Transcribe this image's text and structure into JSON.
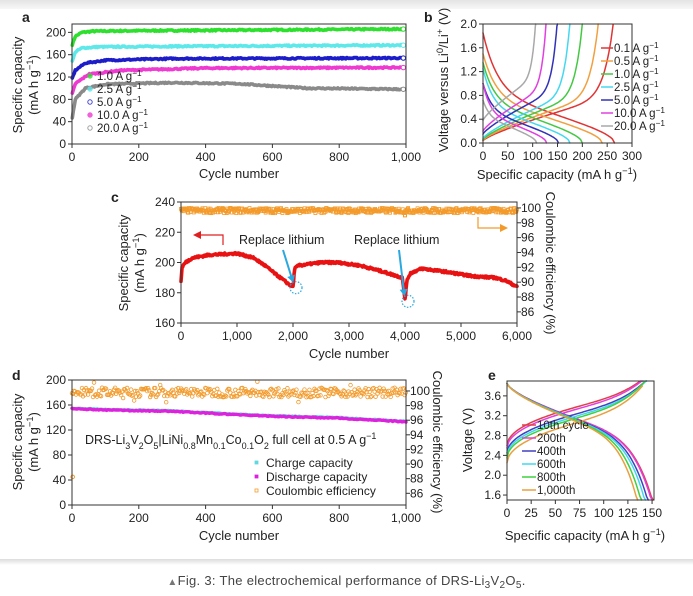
{
  "caption": {
    "marker": "▲",
    "segments": [
      {
        "t": "Fig. 3: The electrochemical performance of DRS-Li",
        "s": ""
      },
      {
        "t": "3",
        "s": "sub"
      },
      {
        "t": "V",
        "s": ""
      },
      {
        "t": "2",
        "s": "sub"
      },
      {
        "t": "O",
        "s": ""
      },
      {
        "t": "5",
        "s": "sub"
      },
      {
        "t": ".",
        "s": ""
      }
    ]
  },
  "chart_data": [
    {
      "panel": "a",
      "type": "scatter",
      "xlabel": "Cycle number",
      "ylabel": [
        [
          {
            "t": "Specific capacity",
            "s": ""
          }
        ],
        [
          {
            "t": "(mA h g",
            "s": ""
          },
          {
            "t": "−1",
            "s": "sup"
          },
          {
            "t": ")",
            "s": ""
          }
        ]
      ],
      "xlim": [
        0,
        1000
      ],
      "ylim": [
        0,
        215
      ],
      "xticks": [
        0,
        200,
        400,
        600,
        800,
        1000
      ],
      "xtick_labels": [
        "0",
        "200",
        "400",
        "600",
        "800",
        "1,000"
      ],
      "yticks": [
        0,
        40,
        80,
        120,
        160,
        200
      ],
      "ytick_labels": [
        "0",
        "40",
        "80",
        "120",
        "160",
        "200"
      ],
      "legend_position": "bottom-left",
      "series": [
        {
          "name": "1.0 A g",
          "exp": "−1",
          "color": "#2ee02e",
          "points": [
            [
              1,
              178
            ],
            [
              10,
              193
            ],
            [
              30,
              200
            ],
            [
              60,
              202
            ],
            [
              200,
              203
            ],
            [
              500,
              204
            ],
            [
              1000,
              206
            ]
          ]
        },
        {
          "name": "2.5 A g",
          "exp": "−1",
          "color": "#5fe8ea",
          "points": [
            [
              1,
              148
            ],
            [
              10,
              165
            ],
            [
              30,
              172
            ],
            [
              80,
              174
            ],
            [
              300,
              175
            ],
            [
              1000,
              177
            ]
          ]
        },
        {
          "name": "5.0 A g",
          "exp": "−1",
          "color": "#1c1cc8",
          "points": [
            [
              1,
              118
            ],
            [
              10,
              132
            ],
            [
              40,
              145
            ],
            [
              100,
              150
            ],
            [
              300,
              153
            ],
            [
              1000,
              154
            ]
          ]
        },
        {
          "name": "10.0 A g",
          "exp": "−1",
          "color": "#ee3ad0",
          "points": [
            [
              1,
              90
            ],
            [
              10,
              108
            ],
            [
              50,
              125
            ],
            [
              150,
              132
            ],
            [
              400,
              136
            ],
            [
              1000,
              137
            ]
          ]
        },
        {
          "name": "20.0 A g",
          "exp": "−1",
          "color": "#8a8a8a",
          "points": [
            [
              1,
              48
            ],
            [
              10,
              80
            ],
            [
              40,
              100
            ],
            [
              100,
              107
            ],
            [
              300,
              110
            ],
            [
              500,
              108
            ],
            [
              700,
              100
            ],
            [
              1000,
              98
            ]
          ]
        }
      ]
    },
    {
      "panel": "b",
      "type": "line",
      "xlabel": [
        {
          "t": "Specific capacity (mA h g",
          "s": ""
        },
        {
          "t": "−1",
          "s": "sup"
        },
        {
          "t": ")",
          "s": ""
        }
      ],
      "ylabel": [
        [
          {
            "t": "Voltage versus Li",
            "s": ""
          },
          {
            "t": "0",
            "s": "sup"
          },
          {
            "t": "/Li",
            "s": ""
          },
          {
            "t": "+",
            "s": "sup"
          },
          {
            "t": " (V)",
            "s": ""
          }
        ]
      ],
      "xlim": [
        0,
        300
      ],
      "ylim": [
        0,
        2.0
      ],
      "xticks": [
        0,
        50,
        100,
        150,
        200,
        250,
        300
      ],
      "xtick_labels": [
        "0",
        "50",
        "100",
        "150",
        "200",
        "250",
        "300"
      ],
      "yticks": [
        0,
        0.4,
        0.8,
        1.2,
        1.6,
        2.0
      ],
      "ytick_labels": [
        "0.0",
        "0.4",
        "0.8",
        "1.2",
        "1.6",
        "2.0"
      ],
      "legend_position": "right",
      "series": [
        {
          "name": "0.1 A g",
          "exp": "−1",
          "color": "#e03434",
          "discharge_capacity": 265,
          "charge_capacity": 262,
          "discharge_start_V": 1.85,
          "plateau_V": 0.85,
          "charge_start_V": 0.04
        },
        {
          "name": "0.5 A g",
          "exp": "−1",
          "color": "#f0a040",
          "discharge_capacity": 240,
          "charge_capacity": 232,
          "discharge_start_V": 1.5,
          "plateau_V": 0.75,
          "charge_start_V": 0.05
        },
        {
          "name": "1.0 A g",
          "exp": "−1",
          "color": "#44c844",
          "discharge_capacity": 200,
          "charge_capacity": 200,
          "discharge_start_V": 1.35,
          "plateau_V": 0.7,
          "charge_start_V": 0.06
        },
        {
          "name": "2.5 A g",
          "exp": "−1",
          "color": "#44d8f0",
          "discharge_capacity": 175,
          "charge_capacity": 175,
          "discharge_start_V": 1.25,
          "plateau_V": 0.62,
          "charge_start_V": 0.08
        },
        {
          "name": "5.0 A g",
          "exp": "−1",
          "color": "#3232b8",
          "discharge_capacity": 152,
          "charge_capacity": 150,
          "discharge_start_V": 1.0,
          "plateau_V": 0.55,
          "charge_start_V": 0.15
        },
        {
          "name": "10.0 A g",
          "exp": "−1",
          "color": "#e040e0",
          "discharge_capacity": 128,
          "charge_capacity": 128,
          "discharge_start_V": 1.0,
          "plateau_V": 0.5,
          "charge_start_V": 0.2
        },
        {
          "name": "20.0 A g",
          "exp": "−1",
          "color": "#a8a8a8",
          "discharge_capacity": 108,
          "charge_capacity": 108,
          "discharge_start_V": 0.72,
          "plateau_V": 0.45,
          "charge_start_V": 0.38
        }
      ]
    },
    {
      "panel": "c",
      "type": "scatter",
      "xlabel": "Cycle number",
      "ylabel": [
        [
          {
            "t": "Specific capacity",
            "s": ""
          }
        ],
        [
          {
            "t": "(mA h g",
            "s": ""
          },
          {
            "t": "−1",
            "s": "sup"
          },
          {
            "t": ")",
            "s": ""
          }
        ]
      ],
      "y2label": "Coulombic efficiency (%)",
      "xlim": [
        0,
        6000
      ],
      "ylim": [
        160,
        240
      ],
      "y2lim": [
        84.5,
        100.8
      ],
      "xticks": [
        0,
        1000,
        2000,
        3000,
        4000,
        5000,
        6000
      ],
      "xtick_labels": [
        "0",
        "1,000",
        "2,000",
        "3,000",
        "4,000",
        "5,000",
        "6,000"
      ],
      "yticks": [
        160,
        180,
        200,
        220,
        240
      ],
      "ytick_labels": [
        "160",
        "180",
        "200",
        "220",
        "240"
      ],
      "y2ticks": [
        86,
        88,
        90,
        92,
        94,
        96,
        98,
        100
      ],
      "y2tick_labels": [
        "86",
        "88",
        "90",
        "92",
        "94",
        "96",
        "98",
        "100"
      ],
      "annotations": [
        {
          "text": "Replace lithium",
          "x": 2000,
          "y": 184
        },
        {
          "text": "Replace lithium",
          "x": 4000,
          "y": 175
        }
      ],
      "series": [
        {
          "name": "Specific capacity",
          "axis": "left",
          "color": "#e81212",
          "points": [
            [
              0,
              188
            ],
            [
              20,
              197
            ],
            [
              80,
              200
            ],
            [
              200,
              203
            ],
            [
              500,
              205
            ],
            [
              1000,
              206
            ],
            [
              1300,
              203
            ],
            [
              1500,
              198
            ],
            [
              1700,
              192
            ],
            [
              1950,
              185
            ],
            [
              2000,
              184
            ],
            [
              2030,
              196
            ],
            [
              2100,
              198
            ],
            [
              2500,
              200
            ],
            [
              2800,
              200
            ],
            [
              3200,
              198
            ],
            [
              3600,
              194
            ],
            [
              3950,
              190
            ],
            [
              4000,
              176
            ],
            [
              4040,
              189
            ],
            [
              4100,
              193
            ],
            [
              4300,
              196
            ],
            [
              4700,
              194
            ],
            [
              5200,
              191
            ],
            [
              5600,
              190
            ],
            [
              5800,
              188
            ],
            [
              6000,
              184
            ]
          ]
        },
        {
          "name": "Coulombic efficiency",
          "axis": "right",
          "color": "#f39a2a",
          "mean": 99.65
        }
      ]
    },
    {
      "panel": "d",
      "type": "scatter",
      "xlabel": "Cycle number",
      "ylabel": [
        [
          {
            "t": "Specific capacity",
            "s": ""
          }
        ],
        [
          {
            "t": "(mA h g",
            "s": ""
          },
          {
            "t": "−1",
            "s": "sup"
          },
          {
            "t": ")",
            "s": ""
          }
        ]
      ],
      "y2label": "Coulombic efficiency (%)",
      "xlim": [
        0,
        1000
      ],
      "ylim": [
        0,
        200
      ],
      "y2lim": [
        84.4,
        101.5
      ],
      "xticks": [
        0,
        200,
        400,
        600,
        800,
        1000
      ],
      "xtick_labels": [
        "0",
        "200",
        "400",
        "600",
        "800",
        "1,000"
      ],
      "yticks": [
        0,
        40,
        80,
        120,
        160,
        200
      ],
      "ytick_labels": [
        "0",
        "40",
        "80",
        "120",
        "160",
        "200"
      ],
      "y2ticks": [
        86,
        88,
        90,
        92,
        94,
        96,
        98,
        100
      ],
      "y2tick_labels": [
        "86",
        "88",
        "90",
        "92",
        "94",
        "96",
        "98",
        "100"
      ],
      "annotation": [
        {
          "t": "DRS-Li",
          "s": ""
        },
        {
          "t": "3",
          "s": "sub"
        },
        {
          "t": "V",
          "s": ""
        },
        {
          "t": "2",
          "s": "sub"
        },
        {
          "t": "O",
          "s": ""
        },
        {
          "t": "5",
          "s": "sub"
        },
        {
          "t": "|LiNi",
          "s": ""
        },
        {
          "t": "0.8",
          "s": "sub"
        },
        {
          "t": "Mn",
          "s": ""
        },
        {
          "t": "0.1",
          "s": "sub"
        },
        {
          "t": "Co",
          "s": ""
        },
        {
          "t": "0.1",
          "s": "sub"
        },
        {
          "t": "O",
          "s": ""
        },
        {
          "t": "2",
          "s": "sub"
        },
        {
          "t": " full cell at 0.5 A g",
          "s": ""
        },
        {
          "t": "−1",
          "s": "sup"
        }
      ],
      "legend_position": "bottom-right",
      "series": [
        {
          "name": "Charge capacity",
          "axis": "left",
          "color": "#5fd8e0",
          "points": [
            [
              0,
              155
            ],
            [
              100,
              153
            ],
            [
              300,
              151
            ],
            [
              400,
              148
            ],
            [
              600,
              143
            ],
            [
              800,
              140
            ],
            [
              1000,
              134
            ]
          ]
        },
        {
          "name": "Discharge capacity",
          "axis": "left",
          "color": "#dd22dd",
          "points": [
            [
              0,
              154
            ],
            [
              100,
              152
            ],
            [
              300,
              150
            ],
            [
              400,
              147
            ],
            [
              600,
              142
            ],
            [
              800,
              139
            ],
            [
              1000,
              133
            ]
          ]
        },
        {
          "name": "Coulombic efficiency",
          "axis": "right",
          "color": "#f39a2a",
          "mean": 99.8
        }
      ]
    },
    {
      "panel": "e",
      "type": "line",
      "xlabel": [
        {
          "t": "Specific capacity (mA h g",
          "s": ""
        },
        {
          "t": "−1",
          "s": "sup"
        },
        {
          "t": ")",
          "s": ""
        }
      ],
      "ylabel": [
        [
          {
            "t": "Voltage (V)",
            "s": ""
          }
        ]
      ],
      "xlim": [
        0,
        152
      ],
      "ylim": [
        1.5,
        3.9
      ],
      "xticks": [
        0,
        25,
        50,
        75,
        100,
        125,
        150
      ],
      "xtick_labels": [
        "0",
        "25",
        "50",
        "75",
        "100",
        "125",
        "150"
      ],
      "yticks": [
        1.6,
        2.0,
        2.4,
        2.8,
        3.2,
        3.6
      ],
      "ytick_labels": [
        "1.6",
        "2.0",
        "2.4",
        "2.8",
        "3.2",
        "3.6"
      ],
      "legend_position": "bottom-left",
      "series": [
        {
          "name": "10th cycle",
          "color": "#e0404a",
          "discharge_capacity": 153,
          "charge_capacity": 152,
          "charge_start_V": 2.6
        },
        {
          "name": "200th",
          "color": "#e040e0",
          "discharge_capacity": 152,
          "charge_capacity": 150,
          "charge_start_V": 2.55
        },
        {
          "name": "400th",
          "color": "#4040c0",
          "discharge_capacity": 148,
          "charge_capacity": 148,
          "charge_start_V": 2.45
        },
        {
          "name": "600th",
          "color": "#40d8f0",
          "discharge_capacity": 145,
          "charge_capacity": 146,
          "charge_start_V": 2.4
        },
        {
          "name": "800th",
          "color": "#40d040",
          "discharge_capacity": 141,
          "charge_capacity": 143,
          "charge_start_V": 2.35
        },
        {
          "name": "1,000th",
          "color": "#e8a040",
          "discharge_capacity": 137,
          "charge_capacity": 140,
          "charge_start_V": 2.25
        }
      ]
    }
  ]
}
